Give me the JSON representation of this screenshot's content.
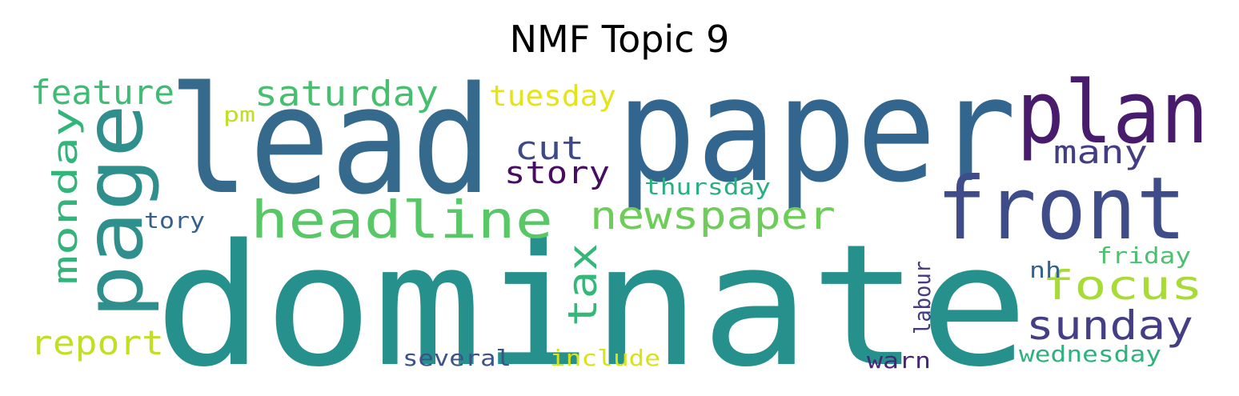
{
  "title": "NMF Topic 9",
  "words": {
    "dominate": {
      "text": "dominate",
      "color": "#26918c"
    },
    "paper": {
      "text": "paper",
      "color": "#32668e"
    },
    "lead": {
      "text": "lead",
      "color": "#366a8c"
    },
    "plan": {
      "text": "plan",
      "color": "#481b6d"
    },
    "front": {
      "text": "front",
      "color": "#3e4c8a"
    },
    "page": {
      "text": "page",
      "color": "#2f8f8c"
    },
    "headline": {
      "text": "headline",
      "color": "#58c765"
    },
    "newspaper": {
      "text": "newspaper",
      "color": "#6dcd59"
    },
    "saturday": {
      "text": "saturday",
      "color": "#46c06f"
    },
    "feature": {
      "text": "feature",
      "color": "#3fbc73"
    },
    "monday": {
      "text": "monday",
      "color": "#31b57b"
    },
    "focus": {
      "text": "focus",
      "color": "#a8db34"
    },
    "sunday": {
      "text": "sunday",
      "color": "#433e85"
    },
    "tax": {
      "text": "tax",
      "color": "#35b779"
    },
    "cut": {
      "text": "cut",
      "color": "#3e4989"
    },
    "story": {
      "text": "story",
      "color": "#470d60"
    },
    "many": {
      "text": "many",
      "color": "#433d84"
    },
    "report": {
      "text": "report",
      "color": "#c2df23"
    },
    "tuesday": {
      "text": "tuesday",
      "color": "#e5e419"
    },
    "thursday": {
      "text": "thursday",
      "color": "#29af7f"
    },
    "tory": {
      "text": "tory",
      "color": "#35608d"
    },
    "labour": {
      "text": "labour",
      "color": "#443983"
    },
    "friday": {
      "text": "friday",
      "color": "#4ac16d"
    },
    "nh": {
      "text": "nh",
      "color": "#33638d"
    },
    "wednesday": {
      "text": "wednesday",
      "color": "#2db27d"
    },
    "warn": {
      "text": "warn",
      "color": "#482677"
    },
    "several": {
      "text": "several",
      "color": "#3b528b"
    },
    "include": {
      "text": "include",
      "color": "#d8e219"
    },
    "pm": {
      "text": "pm",
      "color": "#bddf26"
    }
  }
}
